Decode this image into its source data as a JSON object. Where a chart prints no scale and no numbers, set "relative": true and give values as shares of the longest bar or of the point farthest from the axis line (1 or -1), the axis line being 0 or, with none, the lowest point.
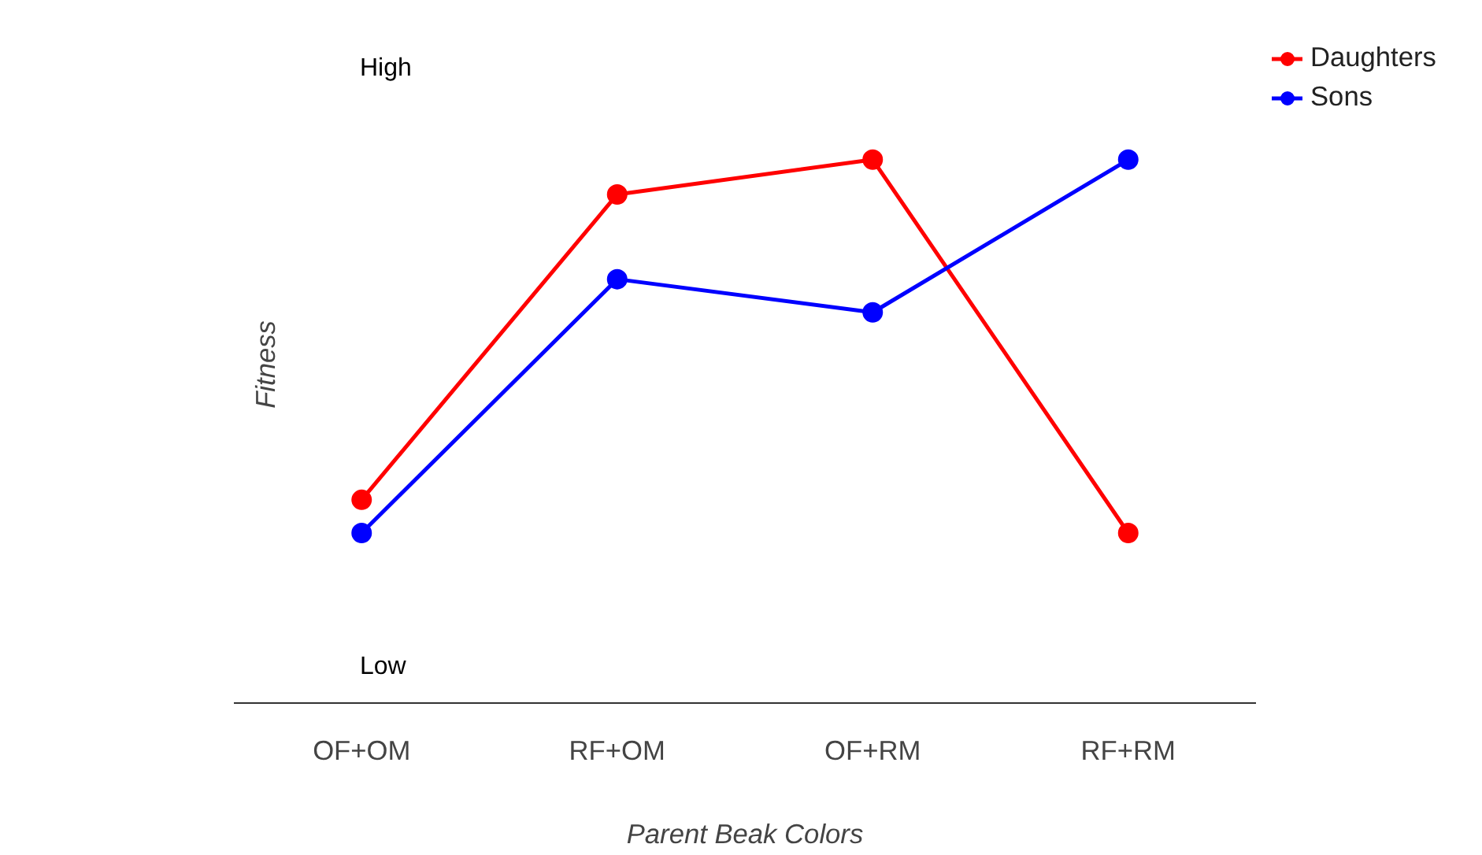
{
  "chart_data": {
    "type": "line",
    "relative": true,
    "xlabel": "Parent Beak Colors",
    "ylabel": "Fitness",
    "categories": [
      "OF+OM",
      "RF+OM",
      "OF+RM",
      "RF+RM"
    ],
    "series": [
      {
        "name": "Daughters",
        "color": "#ff0000",
        "values": [
          0.374,
          0.936,
          1,
          0.313
        ]
      },
      {
        "name": "Sons",
        "color": "#0000ff",
        "values": [
          0.313,
          0.78,
          0.719,
          1
        ]
      }
    ],
    "annotations": [
      "High",
      "Low"
    ],
    "legend": "top right",
    "marker": "circle",
    "line_style": "solid",
    "grid": false
  }
}
